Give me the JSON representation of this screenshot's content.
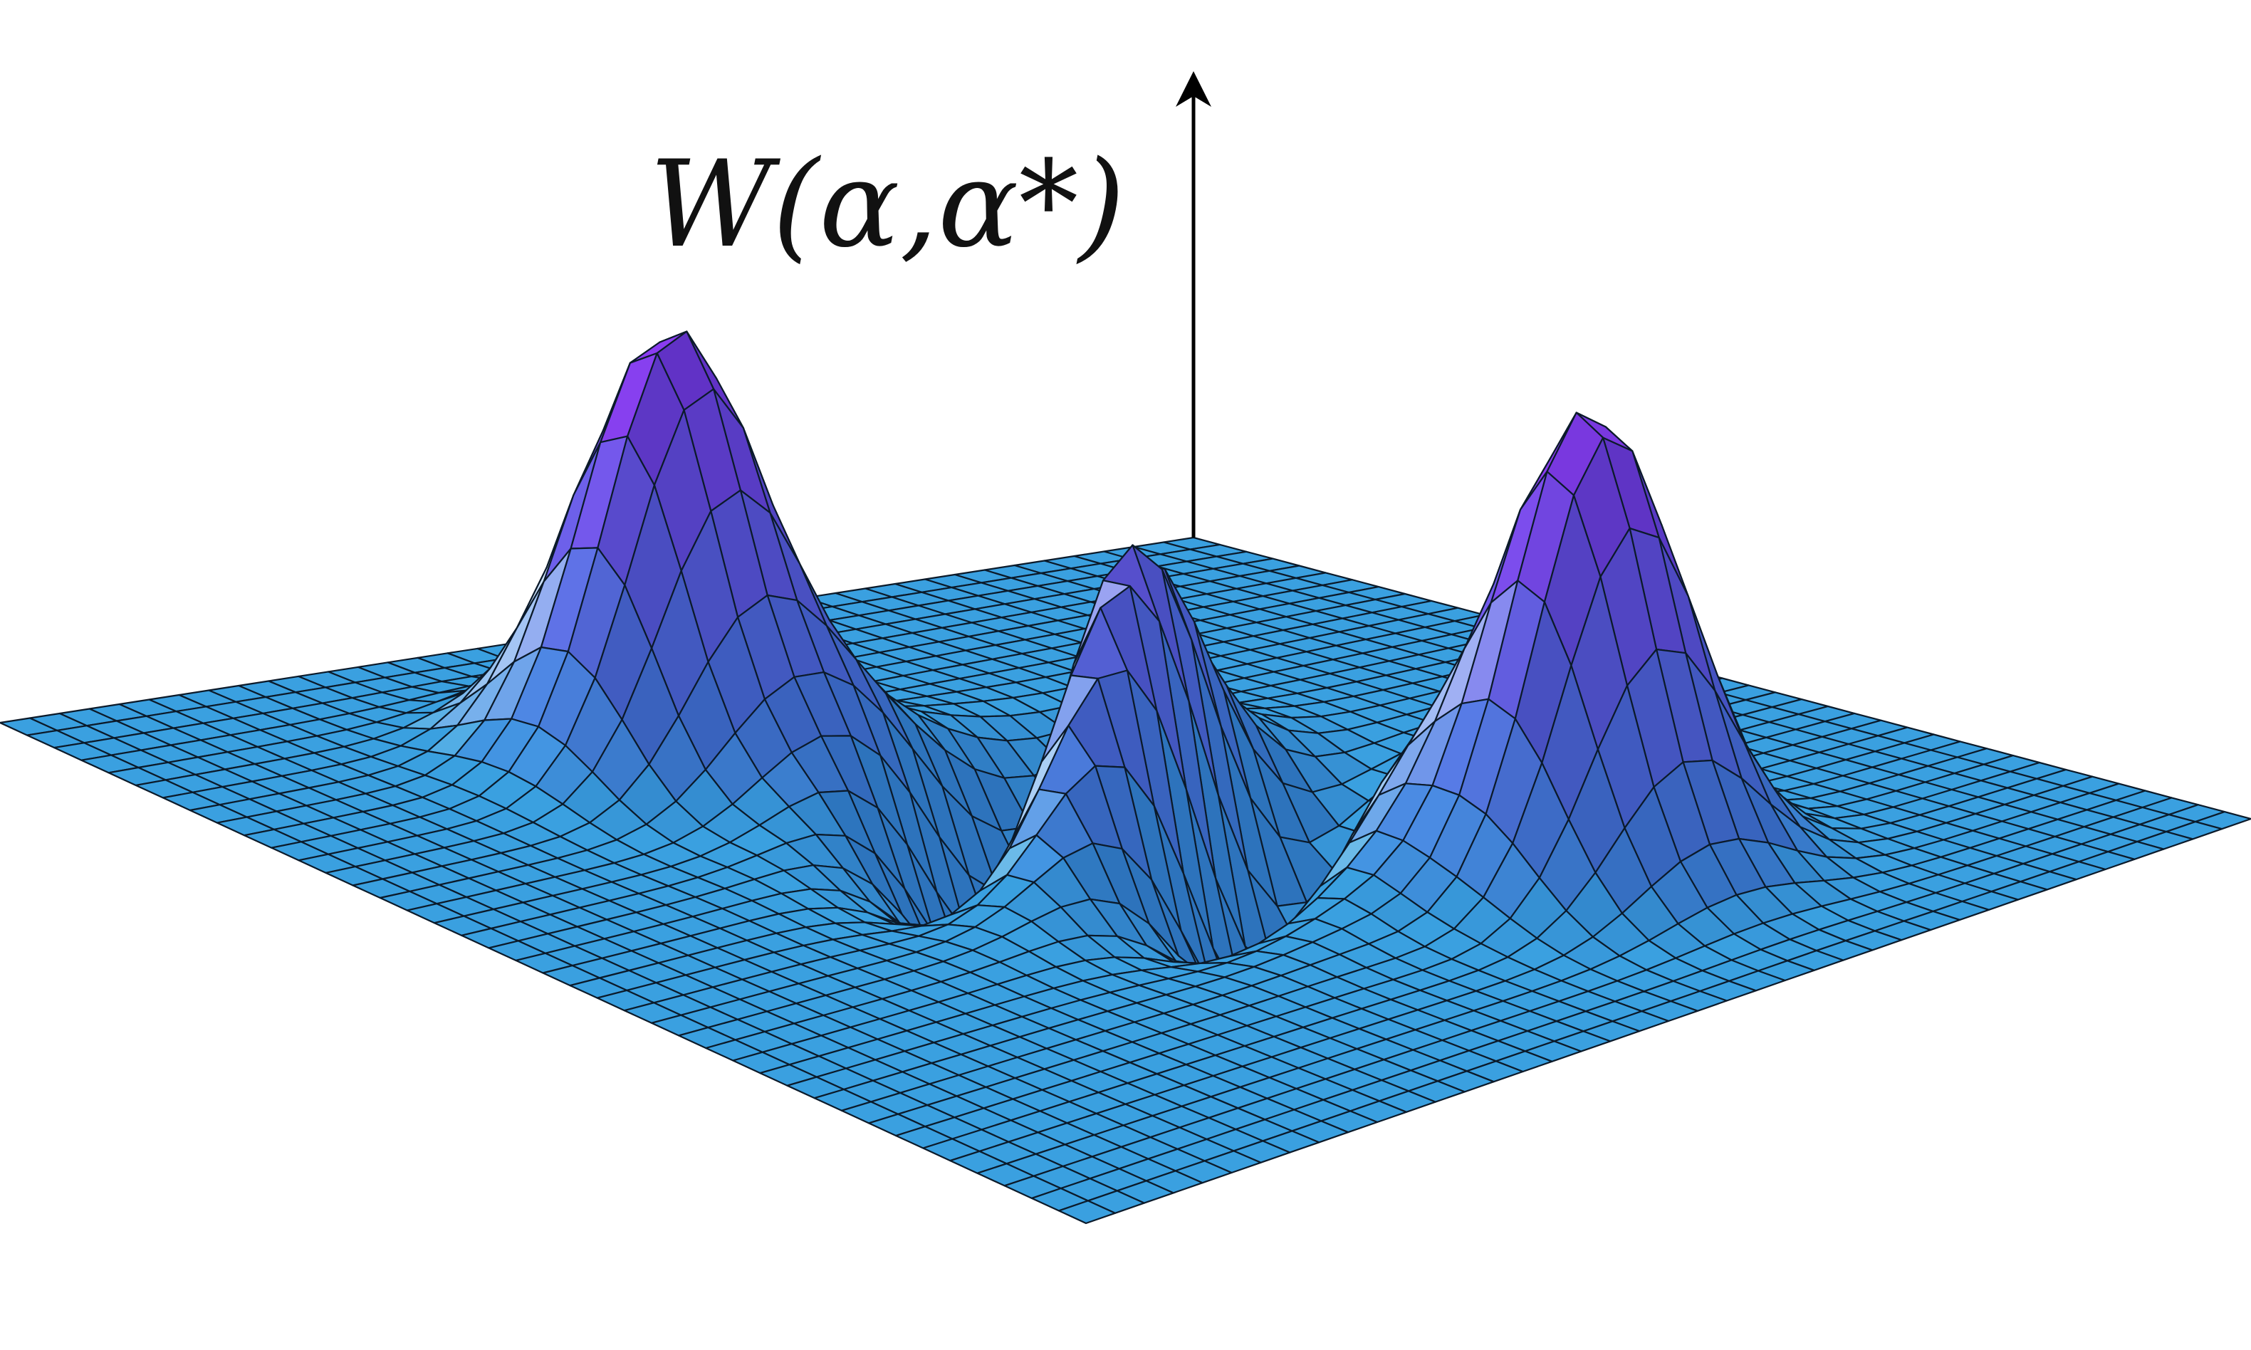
{
  "chart_data": {
    "type": "surface",
    "zlabel": "W(α,α*)",
    "grid": true,
    "colors": {
      "base": "#3aa0e0",
      "peak": "#8a3cf0",
      "highlight": "#dff6ff",
      "mesh": "#0b1a2a",
      "axis": "#000000"
    },
    "surface_components": [
      {
        "name": "",
        "kind": "gaussian",
        "x": -2.3,
        "y": 1.4,
        "amplitude": 1.0,
        "width": 0.55
      },
      {
        "name": "",
        "kind": "gaussian",
        "x": 2.3,
        "y": -1.4,
        "amplitude": 1.0,
        "width": 0.55
      },
      {
        "name": "",
        "kind": "interference",
        "x": 0.0,
        "y": 0.0,
        "amplitude": 0.62,
        "width": 0.6,
        "frequency": 2.2
      }
    ],
    "xlim": [
      -4.5,
      4.5
    ],
    "ylim": [
      -4.5,
      4.5
    ],
    "zlim": [
      -0.6,
      1.0
    ],
    "mesh_resolution": 40
  }
}
